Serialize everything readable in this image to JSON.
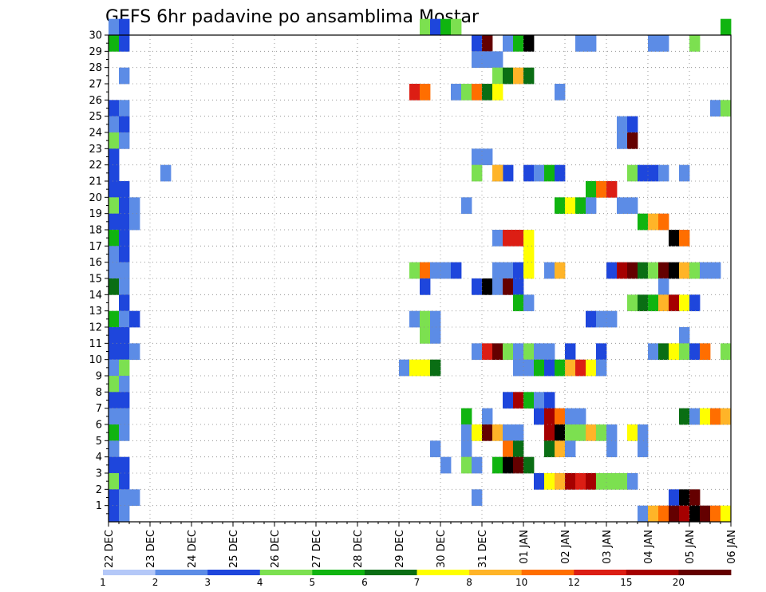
{
  "chart_data": {
    "type": "heatmap",
    "title": "GEFS 6hr padavine po ansamblima Mostar",
    "xlabel": "",
    "ylabel": "",
    "x_tick_labels": [
      "22 DEC",
      "23 DEC",
      "24 DEC",
      "25 DEC",
      "26 DEC",
      "27 DEC",
      "28 DEC",
      "29 DEC",
      "30 DEC",
      "31 DEC",
      "01 JAN",
      "02 JAN",
      "03 JAN",
      "04 JAN",
      "05 JAN",
      "06 JAN"
    ],
    "y_tick_labels": [
      "1",
      "2",
      "3",
      "4",
      "5",
      "6",
      "7",
      "8",
      "9",
      "10",
      "11",
      "12",
      "13",
      "14",
      "15",
      "16",
      "17",
      "18",
      "19",
      "20",
      "21",
      "22",
      "23",
      "24",
      "25",
      "26",
      "27",
      "28",
      "29",
      "30"
    ],
    "x_range_steps": [
      0,
      60
    ],
    "y_range_members": [
      0,
      30
    ],
    "grid": true,
    "colorbar": {
      "boundaries": [
        "1",
        "2",
        "3",
        "4",
        "5",
        "6",
        "7",
        "8",
        "10",
        "12",
        "15",
        "20"
      ],
      "colors": [
        "#b4c8f8",
        "#5c8ce6",
        "#1e46dc",
        "#7ce050",
        "#10b410",
        "#0a6e14",
        "#ffff00",
        "#ffb428",
        "#ff6e00",
        "#dc1e14",
        "#a50000",
        "#640000"
      ]
    },
    "cells": [
      [
        0,
        30,
        1
      ],
      [
        1,
        30,
        2
      ],
      [
        30,
        30,
        3
      ],
      [
        31,
        30,
        2
      ],
      [
        32,
        30,
        4
      ],
      [
        33,
        30,
        3
      ],
      [
        59,
        30,
        4
      ],
      [
        0,
        29,
        4
      ],
      [
        1,
        29,
        2
      ],
      [
        35,
        29,
        2
      ],
      [
        36,
        29,
        11
      ],
      [
        38,
        29,
        1
      ],
      [
        39,
        29,
        4
      ],
      [
        40,
        29,
        12
      ],
      [
        45,
        29,
        1
      ],
      [
        46,
        29,
        1
      ],
      [
        52,
        29,
        1
      ],
      [
        53,
        29,
        1
      ],
      [
        56,
        29,
        3
      ],
      [
        35,
        28,
        1
      ],
      [
        36,
        28,
        1
      ],
      [
        37,
        28,
        1
      ],
      [
        1,
        27,
        1
      ],
      [
        37,
        27,
        3
      ],
      [
        38,
        27,
        5
      ],
      [
        39,
        27,
        7
      ],
      [
        40,
        27,
        5
      ],
      [
        29,
        26,
        9
      ],
      [
        30,
        26,
        8
      ],
      [
        33,
        26,
        1
      ],
      [
        34,
        26,
        3
      ],
      [
        35,
        26,
        8
      ],
      [
        36,
        26,
        5
      ],
      [
        37,
        26,
        6
      ],
      [
        43,
        26,
        1
      ],
      [
        0,
        25,
        2
      ],
      [
        1,
        25,
        1
      ],
      [
        58,
        25,
        1
      ],
      [
        59,
        25,
        3
      ],
      [
        0,
        24,
        1
      ],
      [
        1,
        24,
        2
      ],
      [
        49,
        24,
        1
      ],
      [
        50,
        24,
        2
      ],
      [
        0,
        23,
        3
      ],
      [
        1,
        23,
        1
      ],
      [
        49,
        23,
        1
      ],
      [
        50,
        23,
        11
      ],
      [
        0,
        22,
        2
      ],
      [
        35,
        22,
        1
      ],
      [
        36,
        22,
        1
      ],
      [
        0,
        21,
        2
      ],
      [
        35,
        21,
        3
      ],
      [
        37,
        21,
        1
      ],
      [
        38,
        21,
        2
      ],
      [
        0,
        21,
        2
      ],
      [
        5,
        21,
        1
      ],
      [
        37,
        21,
        7
      ],
      [
        40,
        21,
        2
      ],
      [
        41,
        21,
        1
      ],
      [
        42,
        21,
        4
      ],
      [
        43,
        21,
        2
      ],
      [
        50,
        21,
        3
      ],
      [
        51,
        21,
        2
      ],
      [
        52,
        21,
        2
      ],
      [
        53,
        21,
        1
      ],
      [
        55,
        21,
        1
      ],
      [
        0,
        20,
        2
      ],
      [
        1,
        20,
        2
      ],
      [
        46,
        20,
        4
      ],
      [
        47,
        20,
        8
      ],
      [
        48,
        20,
        9
      ],
      [
        0,
        19,
        3
      ],
      [
        1,
        19,
        2
      ],
      [
        2,
        19,
        1
      ],
      [
        34,
        19,
        1
      ],
      [
        43,
        19,
        4
      ],
      [
        44,
        19,
        6
      ],
      [
        45,
        19,
        4
      ],
      [
        46,
        19,
        1
      ],
      [
        49,
        19,
        1
      ],
      [
        50,
        19,
        1
      ],
      [
        0,
        18,
        2
      ],
      [
        1,
        18,
        2
      ],
      [
        2,
        18,
        1
      ],
      [
        51,
        18,
        4
      ],
      [
        52,
        18,
        7
      ],
      [
        53,
        18,
        8
      ],
      [
        0,
        17,
        4
      ],
      [
        1,
        17,
        2
      ],
      [
        37,
        17,
        1
      ],
      [
        38,
        17,
        9
      ],
      [
        39,
        17,
        9
      ],
      [
        40,
        17,
        6
      ],
      [
        54,
        17,
        12
      ],
      [
        55,
        17,
        8
      ],
      [
        0,
        16,
        1
      ],
      [
        1,
        16,
        2
      ],
      [
        40,
        16,
        6
      ],
      [
        0,
        15,
        1
      ],
      [
        1,
        15,
        1
      ],
      [
        29,
        15,
        3
      ],
      [
        30,
        15,
        8
      ],
      [
        31,
        15,
        1
      ],
      [
        32,
        15,
        1
      ],
      [
        33,
        15,
        2
      ],
      [
        37,
        15,
        1
      ],
      [
        38,
        15,
        1
      ],
      [
        39,
        15,
        2
      ],
      [
        40,
        15,
        6
      ],
      [
        42,
        15,
        1
      ],
      [
        43,
        15,
        7
      ],
      [
        48,
        15,
        2
      ],
      [
        49,
        15,
        10
      ],
      [
        50,
        15,
        11
      ],
      [
        51,
        15,
        5
      ],
      [
        52,
        15,
        3
      ],
      [
        53,
        15,
        11
      ],
      [
        54,
        15,
        12
      ],
      [
        55,
        15,
        7
      ],
      [
        56,
        15,
        3
      ],
      [
        57,
        15,
        1
      ],
      [
        58,
        15,
        1
      ],
      [
        0,
        14,
        5
      ],
      [
        1,
        14,
        1
      ],
      [
        30,
        14,
        2
      ],
      [
        35,
        14,
        2
      ],
      [
        36,
        14,
        12
      ],
      [
        37,
        14,
        1
      ],
      [
        38,
        14,
        11
      ],
      [
        39,
        14,
        2
      ],
      [
        53,
        14,
        1
      ],
      [
        1,
        13,
        2
      ],
      [
        39,
        13,
        4
      ],
      [
        40,
        13,
        1
      ],
      [
        50,
        13,
        3
      ],
      [
        51,
        13,
        5
      ],
      [
        52,
        13,
        4
      ],
      [
        53,
        13,
        7
      ],
      [
        54,
        13,
        10
      ],
      [
        55,
        13,
        6
      ],
      [
        56,
        13,
        2
      ],
      [
        0,
        12,
        4
      ],
      [
        1,
        12,
        1
      ],
      [
        2,
        12,
        2
      ],
      [
        29,
        12,
        1
      ],
      [
        30,
        12,
        3
      ],
      [
        31,
        12,
        1
      ],
      [
        46,
        12,
        2
      ],
      [
        47,
        12,
        1
      ],
      [
        48,
        12,
        1
      ],
      [
        0,
        11,
        2
      ],
      [
        1,
        11,
        2
      ],
      [
        30,
        11,
        3
      ],
      [
        31,
        11,
        1
      ],
      [
        55,
        11,
        1
      ],
      [
        0,
        10,
        2
      ],
      [
        1,
        10,
        2
      ],
      [
        2,
        10,
        1
      ],
      [
        35,
        10,
        1
      ],
      [
        36,
        10,
        9
      ],
      [
        37,
        10,
        11
      ],
      [
        38,
        10,
        3
      ],
      [
        39,
        10,
        1
      ],
      [
        40,
        10,
        3
      ],
      [
        41,
        10,
        1
      ],
      [
        42,
        10,
        1
      ],
      [
        44,
        10,
        2
      ],
      [
        47,
        10,
        2
      ],
      [
        52,
        10,
        1
      ],
      [
        53,
        10,
        5
      ],
      [
        54,
        10,
        6
      ],
      [
        55,
        10,
        3
      ],
      [
        56,
        10,
        2
      ],
      [
        57,
        10,
        8
      ],
      [
        59,
        10,
        3
      ],
      [
        0,
        9,
        1
      ],
      [
        1,
        9,
        3
      ],
      [
        28,
        9,
        1
      ],
      [
        29,
        9,
        6
      ],
      [
        30,
        9,
        6
      ],
      [
        31,
        9,
        5
      ],
      [
        39,
        9,
        1
      ],
      [
        40,
        9,
        1
      ],
      [
        41,
        9,
        4
      ],
      [
        42,
        9,
        2
      ],
      [
        43,
        9,
        4
      ],
      [
        44,
        9,
        7
      ],
      [
        45,
        9,
        9
      ],
      [
        46,
        9,
        6
      ],
      [
        47,
        9,
        1
      ],
      [
        0,
        8,
        3
      ],
      [
        1,
        8,
        1
      ],
      [
        0,
        7,
        2
      ],
      [
        1,
        7,
        2
      ],
      [
        38,
        7,
        2
      ],
      [
        39,
        7,
        10
      ],
      [
        40,
        7,
        4
      ],
      [
        41,
        7,
        1
      ],
      [
        42,
        7,
        2
      ],
      [
        0,
        6,
        1
      ],
      [
        1,
        6,
        1
      ],
      [
        34,
        6,
        4
      ],
      [
        36,
        6,
        1
      ],
      [
        41,
        6,
        2
      ],
      [
        42,
        6,
        10
      ],
      [
        43,
        6,
        8
      ],
      [
        44,
        6,
        1
      ],
      [
        45,
        6,
        1
      ],
      [
        55,
        6,
        5
      ],
      [
        56,
        6,
        1
      ],
      [
        57,
        6,
        6
      ],
      [
        58,
        6,
        8
      ],
      [
        59,
        6,
        7
      ],
      [
        0,
        5,
        4
      ],
      [
        1,
        5,
        1
      ],
      [
        34,
        5,
        1
      ],
      [
        35,
        5,
        6
      ],
      [
        36,
        5,
        11
      ],
      [
        37,
        5,
        7
      ],
      [
        38,
        5,
        1
      ],
      [
        39,
        5,
        1
      ],
      [
        42,
        5,
        10
      ],
      [
        43,
        5,
        12
      ],
      [
        44,
        5,
        3
      ],
      [
        45,
        5,
        3
      ],
      [
        46,
        5,
        7
      ],
      [
        47,
        5,
        3
      ],
      [
        48,
        5,
        1
      ],
      [
        50,
        5,
        6
      ],
      [
        51,
        5,
        1
      ],
      [
        0,
        4,
        1
      ],
      [
        31,
        4,
        1
      ],
      [
        34,
        4,
        1
      ],
      [
        38,
        4,
        8
      ],
      [
        39,
        4,
        5
      ],
      [
        42,
        4,
        5
      ],
      [
        43,
        4,
        7
      ],
      [
        44,
        4,
        1
      ],
      [
        48,
        4,
        1
      ],
      [
        51,
        4,
        1
      ],
      [
        0,
        3,
        2
      ],
      [
        1,
        3,
        2
      ],
      [
        32,
        3,
        1
      ],
      [
        34,
        3,
        3
      ],
      [
        35,
        3,
        1
      ],
      [
        37,
        3,
        4
      ],
      [
        38,
        3,
        12
      ],
      [
        39,
        3,
        11
      ],
      [
        40,
        3,
        5
      ],
      [
        0,
        2,
        3
      ],
      [
        1,
        2,
        2
      ],
      [
        41,
        2,
        2
      ],
      [
        42,
        2,
        6
      ],
      [
        43,
        2,
        7
      ],
      [
        44,
        2,
        10
      ],
      [
        45,
        2,
        9
      ],
      [
        46,
        2,
        10
      ],
      [
        47,
        2,
        3
      ],
      [
        48,
        2,
        3
      ],
      [
        49,
        2,
        3
      ],
      [
        50,
        2,
        1
      ],
      [
        0,
        1,
        2
      ],
      [
        1,
        1,
        1
      ],
      [
        2,
        1,
        1
      ],
      [
        35,
        1,
        1
      ],
      [
        54,
        1,
        2
      ],
      [
        55,
        1,
        12
      ],
      [
        56,
        1,
        11
      ],
      [
        0,
        0,
        2
      ],
      [
        1,
        0,
        1
      ],
      [
        51,
        0,
        1
      ],
      [
        52,
        0,
        7
      ],
      [
        53,
        0,
        8
      ],
      [
        54,
        0,
        11
      ],
      [
        55,
        0,
        10
      ],
      [
        56,
        0,
        12
      ],
      [
        57,
        0,
        11
      ],
      [
        58,
        0,
        8
      ],
      [
        59,
        0,
        6
      ]
    ]
  }
}
